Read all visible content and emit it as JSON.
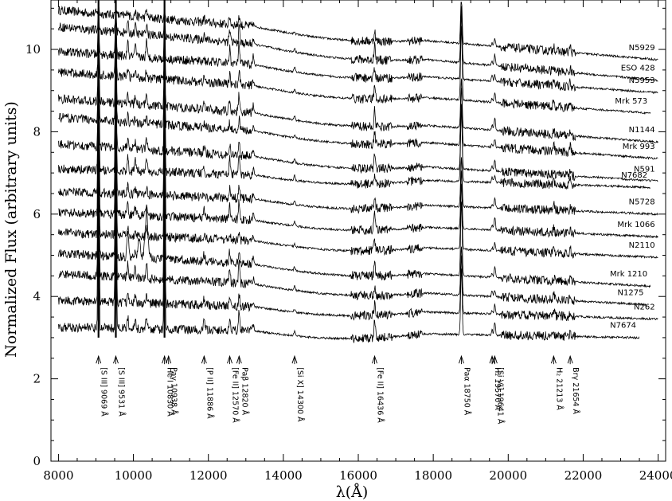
{
  "chart_data": {
    "type": "line",
    "title": "",
    "xlabel": "λ(Å)",
    "ylabel": "Normalized Flux (arbitrary units)",
    "xlim": [
      7800,
      24200
    ],
    "ylim": [
      0,
      11.2
    ],
    "x_ticks": [
      8000,
      10000,
      12000,
      14000,
      16000,
      18000,
      20000,
      22000,
      24000
    ],
    "y_ticks": [
      0,
      2,
      4,
      6,
      8,
      10
    ],
    "grid": false,
    "series": [
      {
        "name": "N5929",
        "start": 8000,
        "end": 24000,
        "y_start": 10.95,
        "y_end": 9.75
      },
      {
        "name": "ESO 428",
        "start": 8000,
        "end": 24000,
        "y_start": 10.55,
        "y_end": 9.25
      },
      {
        "name": "N5953",
        "start": 8000,
        "end": 24000,
        "y_start": 9.95,
        "y_end": 8.95
      },
      {
        "name": "Mrk 573",
        "start": 8000,
        "end": 23800,
        "y_start": 9.45,
        "y_end": 8.45
      },
      {
        "name": "N1144",
        "start": 8000,
        "end": 24000,
        "y_start": 8.8,
        "y_end": 7.75
      },
      {
        "name": "Mrk 993",
        "start": 8000,
        "end": 24000,
        "y_start": 8.35,
        "y_end": 7.35
      },
      {
        "name": "N591",
        "start": 8000,
        "end": 24000,
        "y_start": 7.7,
        "y_end": 6.8
      },
      {
        "name": "N7682",
        "start": 8000,
        "end": 23800,
        "y_start": 7.1,
        "y_end": 6.65
      },
      {
        "name": "N5728",
        "start": 8000,
        "end": 24000,
        "y_start": 6.55,
        "y_end": 6.0
      },
      {
        "name": "Mrk 1066",
        "start": 8000,
        "end": 24000,
        "y_start": 6.05,
        "y_end": 5.45
      },
      {
        "name": "N2110",
        "start": 8000,
        "end": 24000,
        "y_start": 5.55,
        "y_end": 4.95
      },
      {
        "name": "Mrk 1210",
        "start": 8000,
        "end": 23800,
        "y_start": 5.05,
        "y_end": 4.25
      },
      {
        "name": "N1275",
        "start": 8000,
        "end": 23700,
        "y_start": 4.55,
        "y_end": 3.8
      },
      {
        "name": "N262",
        "start": 8000,
        "end": 24000,
        "y_start": 3.9,
        "y_end": 3.45
      },
      {
        "name": "N7674",
        "start": 8000,
        "end": 23500,
        "y_start": 3.25,
        "y_end": 3.0
      }
    ],
    "annotations": [
      {
        "text": "[S III] 9069 Å",
        "x": 9069
      },
      {
        "text": "[S III] 9531 Å",
        "x": 9531
      },
      {
        "text": "He I 10830 Å",
        "x": 10830
      },
      {
        "text": "Paγ 10938 Å",
        "x": 10938
      },
      {
        "text": "[P II] 11886 Å",
        "x": 11886
      },
      {
        "text": "[Fe II] 12570 Å",
        "x": 12570
      },
      {
        "text": "Paβ 12820 Å",
        "x": 12820
      },
      {
        "text": "[Si X] 14300 Å",
        "x": 14300
      },
      {
        "text": "[Fe II] 16436 Å",
        "x": 16436
      },
      {
        "text": "Paα 18750 Å",
        "x": 18750
      },
      {
        "text": "H₂ 19570 Å",
        "x": 19570
      },
      {
        "text": "[Si VI] 19641 Å",
        "x": 19641
      },
      {
        "text": "H₂ 21213 Å",
        "x": 21213
      },
      {
        "text": "Brγ 21654 Å",
        "x": 21654
      }
    ]
  }
}
